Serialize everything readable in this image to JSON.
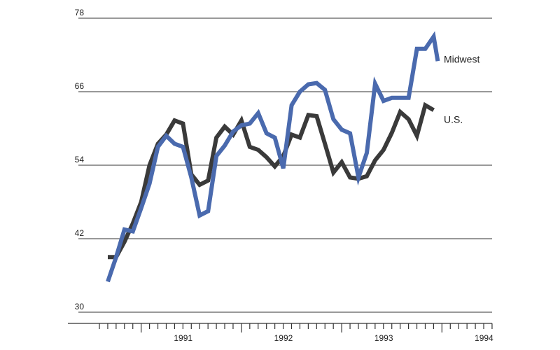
{
  "chart_data": {
    "type": "line",
    "title": "",
    "xlabel": "",
    "ylabel": "",
    "ylim": [
      30,
      78
    ],
    "yticks": [
      30,
      42,
      54,
      66,
      78
    ],
    "xlim": [
      1990.583,
      1994.5
    ],
    "xticks": [
      {
        "year": 1991,
        "label": "1991"
      },
      {
        "year": 1992,
        "label": "1992"
      },
      {
        "year": 1993,
        "label": "1993"
      },
      {
        "year": 1994,
        "label": "1994"
      }
    ],
    "grid": true,
    "series": [
      {
        "name": "U.S.",
        "color": "#3a3a3a",
        "x": [
          1990.667,
          1990.75,
          1990.833,
          1990.917,
          1991.0,
          1991.083,
          1991.167,
          1991.25,
          1991.333,
          1991.417,
          1991.5,
          1991.583,
          1991.667,
          1991.75,
          1991.833,
          1991.917,
          1992.0,
          1992.083,
          1992.167,
          1992.25,
          1992.333,
          1992.417,
          1992.5,
          1992.583,
          1992.667,
          1992.75,
          1992.833,
          1992.917,
          1993.0,
          1993.083,
          1993.167,
          1993.25,
          1993.333,
          1993.417,
          1993.5,
          1993.583,
          1993.667,
          1993.75,
          1993.833,
          1993.917
        ],
        "values": [
          39,
          39,
          41.5,
          44.5,
          48,
          54,
          57.5,
          59,
          61.3,
          60.8,
          52.5,
          50.8,
          51.5,
          58.5,
          60.3,
          59,
          61.3,
          57,
          56.5,
          55.3,
          53.8,
          55.5,
          59,
          58.5,
          62.2,
          62,
          57.5,
          52.8,
          54.5,
          52,
          51.8,
          52.2,
          54.8,
          56.5,
          59.3,
          62.7,
          61.5,
          58.8,
          63.8,
          63
        ]
      },
      {
        "name": "Midwest",
        "color": "#4a6aae",
        "x": [
          1990.667,
          1990.75,
          1990.833,
          1990.917,
          1991.0,
          1991.083,
          1991.167,
          1991.25,
          1991.333,
          1991.417,
          1991.5,
          1991.583,
          1991.667,
          1991.75,
          1991.833,
          1991.917,
          1992.0,
          1992.083,
          1992.167,
          1992.25,
          1992.333,
          1992.417,
          1992.5,
          1992.583,
          1992.667,
          1992.75,
          1992.833,
          1992.917,
          1993.0,
          1993.083,
          1993.167,
          1993.25,
          1993.333,
          1993.417,
          1993.5,
          1993.583,
          1993.667,
          1993.75,
          1993.833,
          1993.917
        ],
        "values": [
          35,
          39,
          43.5,
          43.2,
          47,
          51,
          57,
          58.8,
          57.5,
          57,
          52,
          45.8,
          46.5,
          55.5,
          57.2,
          59.5,
          60.5,
          60.8,
          62.5,
          59.2,
          58.5,
          53.5,
          63.8,
          66,
          67.2,
          67.4,
          66.3,
          61.5,
          59.8,
          59.2,
          52,
          56,
          67.3,
          64.5,
          65,
          65,
          65,
          73,
          73,
          75
        ]
      }
    ],
    "series_extra_tail": {
      "Midwest": {
        "x": 1993.958,
        "value": 71
      }
    },
    "series_labels": [
      {
        "text": "Midwest"
      },
      {
        "text": "U.S."
      }
    ]
  }
}
